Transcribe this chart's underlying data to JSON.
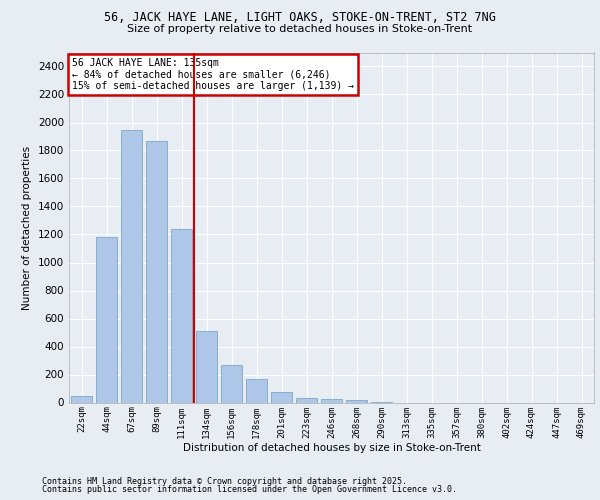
{
  "title1": "56, JACK HAYE LANE, LIGHT OAKS, STOKE-ON-TRENT, ST2 7NG",
  "title2": "Size of property relative to detached houses in Stoke-on-Trent",
  "xlabel": "Distribution of detached houses by size in Stoke-on-Trent",
  "ylabel": "Number of detached properties",
  "categories": [
    "22sqm",
    "44sqm",
    "67sqm",
    "89sqm",
    "111sqm",
    "134sqm",
    "156sqm",
    "178sqm",
    "201sqm",
    "223sqm",
    "246sqm",
    "268sqm",
    "290sqm",
    "313sqm",
    "335sqm",
    "357sqm",
    "380sqm",
    "402sqm",
    "424sqm",
    "447sqm",
    "469sqm"
  ],
  "values": [
    50,
    1180,
    1950,
    1870,
    1240,
    510,
    270,
    165,
    75,
    35,
    25,
    15,
    5,
    0,
    0,
    0,
    0,
    0,
    0,
    0,
    0
  ],
  "bar_color": "#aec6e8",
  "bar_edge_color": "#6a9fc0",
  "vline_color": "#cc0000",
  "vline_xindex": 4.5,
  "annotation_text": "56 JACK HAYE LANE: 135sqm\n← 84% of detached houses are smaller (6,246)\n15% of semi-detached houses are larger (1,139) →",
  "annotation_box_facecolor": "#ffffff",
  "annotation_box_edgecolor": "#cc0000",
  "ylim_max": 2500,
  "yticks": [
    0,
    200,
    400,
    600,
    800,
    1000,
    1200,
    1400,
    1600,
    1800,
    2000,
    2200,
    2400
  ],
  "bg_color": "#e8edf4",
  "grid_color": "#ffffff",
  "footer1": "Contains HM Land Registry data © Crown copyright and database right 2025.",
  "footer2": "Contains public sector information licensed under the Open Government Licence v3.0."
}
